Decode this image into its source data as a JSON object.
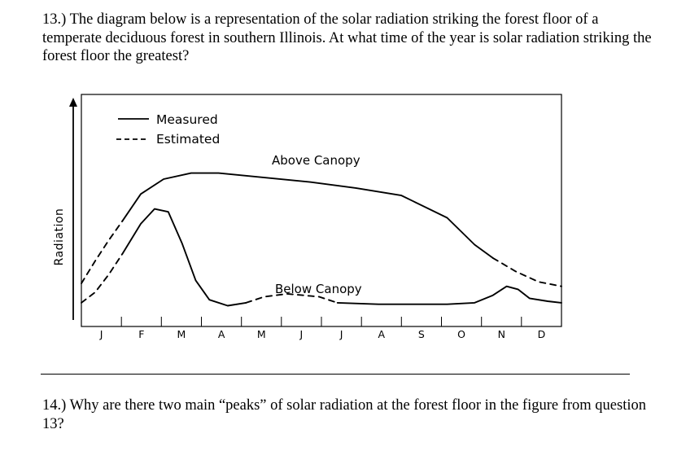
{
  "question13": "13.) The diagram below is a representation of the solar radiation striking the forest floor of a temperate deciduous forest in southern Illinois.  At what time of the year is solar radiation striking the forest floor the greatest?",
  "question14": "14.) Why are there two main “peaks” of solar radiation at the forest floor in the figure from question 13?",
  "chart_data": {
    "type": "line",
    "ylabel": "Radiation",
    "xlabel": "",
    "categories": [
      "J",
      "F",
      "M",
      "A",
      "M",
      "J",
      "J",
      "A",
      "S",
      "O",
      "N",
      "D"
    ],
    "legend": [
      {
        "style": "solid",
        "label": "Measured"
      },
      {
        "style": "dashed",
        "label": "Estimated"
      }
    ],
    "annotations": [
      "Above Canopy",
      "Below Canopy"
    ],
    "series": [
      {
        "name": "Above Canopy",
        "segments": [
          {
            "style": "dashed",
            "points": [
              [
                0.0,
                0.18
              ],
              [
                0.3,
                0.33
              ],
              [
                0.6,
                0.47
              ],
              [
                0.9,
                0.6
              ]
            ]
          },
          {
            "style": "solid",
            "points": [
              [
                0.9,
                0.6
              ],
              [
                1.3,
                0.78
              ],
              [
                1.8,
                0.88
              ],
              [
                2.4,
                0.92
              ],
              [
                3.0,
                0.92
              ],
              [
                4.0,
                0.89
              ],
              [
                5.0,
                0.86
              ],
              [
                6.0,
                0.82
              ],
              [
                7.0,
                0.77
              ],
              [
                8.0,
                0.62
              ],
              [
                8.6,
                0.44
              ],
              [
                9.0,
                0.35
              ]
            ]
          },
          {
            "style": "dashed",
            "points": [
              [
                9.0,
                0.35
              ],
              [
                9.5,
                0.26
              ],
              [
                10.0,
                0.19
              ],
              [
                10.5,
                0.16
              ]
            ]
          }
        ]
      },
      {
        "name": "Below Canopy",
        "segments": [
          {
            "style": "dashed",
            "points": [
              [
                0.0,
                0.05
              ],
              [
                0.3,
                0.12
              ],
              [
                0.6,
                0.24
              ],
              [
                0.9,
                0.38
              ]
            ]
          },
          {
            "style": "solid",
            "points": [
              [
                0.9,
                0.38
              ],
              [
                1.3,
                0.58
              ],
              [
                1.6,
                0.68
              ],
              [
                1.9,
                0.66
              ],
              [
                2.2,
                0.45
              ],
              [
                2.5,
                0.2
              ],
              [
                2.8,
                0.07
              ],
              [
                3.2,
                0.03
              ],
              [
                3.6,
                0.05
              ]
            ]
          },
          {
            "style": "dashed",
            "points": [
              [
                3.6,
                0.05
              ],
              [
                4.0,
                0.09
              ],
              [
                4.5,
                0.11
              ],
              [
                5.2,
                0.09
              ],
              [
                5.6,
                0.05
              ]
            ]
          },
          {
            "style": "solid",
            "points": [
              [
                5.6,
                0.05
              ],
              [
                6.5,
                0.04
              ],
              [
                8.0,
                0.04
              ],
              [
                8.6,
                0.05
              ],
              [
                9.0,
                0.1
              ],
              [
                9.3,
                0.16
              ],
              [
                9.55,
                0.14
              ],
              [
                9.8,
                0.08
              ],
              [
                10.2,
                0.06
              ],
              [
                10.5,
                0.05
              ]
            ]
          }
        ]
      }
    ]
  }
}
